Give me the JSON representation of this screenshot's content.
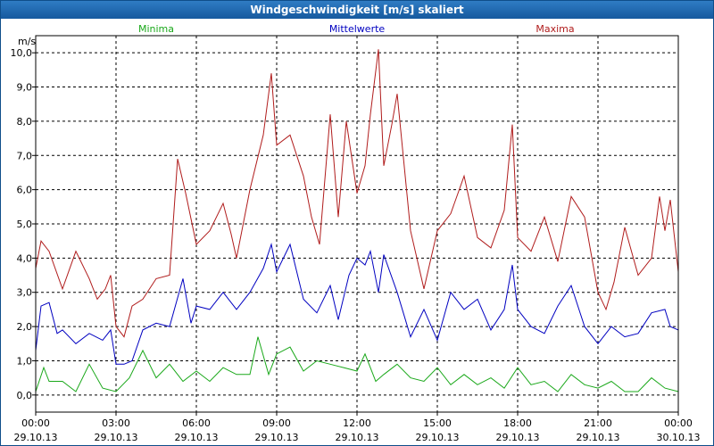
{
  "window": {
    "title": "Windgeschwindigkeit [m/s] skaliert"
  },
  "chart_data": {
    "type": "line",
    "title": "Windgeschwindigkeit [m/s] skaliert",
    "ylabel": "m/s",
    "ylim": [
      -0.5,
      10.5
    ],
    "xlim": [
      0,
      24
    ],
    "yticks": [
      "0,0",
      "1,0",
      "2,0",
      "3,0",
      "4,0",
      "5,0",
      "6,0",
      "7,0",
      "8,0",
      "9,0",
      "10,0"
    ],
    "ytick_values": [
      0,
      1,
      2,
      3,
      4,
      5,
      6,
      7,
      8,
      9,
      10
    ],
    "xticks": [
      {
        "value": 0,
        "time": "00:00",
        "date": "29.10.13"
      },
      {
        "value": 3,
        "time": "03:00",
        "date": "29.10.13"
      },
      {
        "value": 6,
        "time": "06:00",
        "date": "29.10.13"
      },
      {
        "value": 9,
        "time": "09:00",
        "date": "29.10.13"
      },
      {
        "value": 12,
        "time": "12:00",
        "date": "29.10.13"
      },
      {
        "value": 15,
        "time": "15:00",
        "date": "29.10.13"
      },
      {
        "value": 18,
        "time": "18:00",
        "date": "29.10.13"
      },
      {
        "value": 21,
        "time": "21:00",
        "date": "29.10.13"
      },
      {
        "value": 24,
        "time": "00:00",
        "date": "30.10.13"
      }
    ],
    "grid": true,
    "series": [
      {
        "name": "Minima",
        "color": "#1aa81a",
        "points": [
          [
            0.0,
            0.1
          ],
          [
            0.3,
            0.8
          ],
          [
            0.5,
            0.4
          ],
          [
            1.0,
            0.4
          ],
          [
            1.5,
            0.1
          ],
          [
            2.0,
            0.9
          ],
          [
            2.5,
            0.2
          ],
          [
            3.0,
            0.1
          ],
          [
            3.5,
            0.5
          ],
          [
            4.0,
            1.3
          ],
          [
            4.5,
            0.5
          ],
          [
            5.0,
            0.9
          ],
          [
            5.5,
            0.4
          ],
          [
            6.0,
            0.7
          ],
          [
            6.5,
            0.4
          ],
          [
            7.0,
            0.8
          ],
          [
            7.5,
            0.6
          ],
          [
            8.0,
            0.6
          ],
          [
            8.3,
            1.7
          ],
          [
            8.7,
            0.6
          ],
          [
            9.0,
            1.2
          ],
          [
            9.5,
            1.4
          ],
          [
            10.0,
            0.7
          ],
          [
            10.5,
            1.0
          ],
          [
            11.0,
            0.9
          ],
          [
            11.5,
            0.8
          ],
          [
            12.0,
            0.7
          ],
          [
            12.3,
            1.2
          ],
          [
            12.7,
            0.4
          ],
          [
            13.0,
            0.6
          ],
          [
            13.5,
            0.9
          ],
          [
            14.0,
            0.5
          ],
          [
            14.5,
            0.4
          ],
          [
            15.0,
            0.8
          ],
          [
            15.5,
            0.3
          ],
          [
            16.0,
            0.6
          ],
          [
            16.5,
            0.3
          ],
          [
            17.0,
            0.5
          ],
          [
            17.5,
            0.2
          ],
          [
            18.0,
            0.8
          ],
          [
            18.5,
            0.3
          ],
          [
            19.0,
            0.4
          ],
          [
            19.5,
            0.1
          ],
          [
            20.0,
            0.6
          ],
          [
            20.5,
            0.3
          ],
          [
            21.0,
            0.2
          ],
          [
            21.5,
            0.4
          ],
          [
            22.0,
            0.1
          ],
          [
            22.5,
            0.1
          ],
          [
            23.0,
            0.5
          ],
          [
            23.5,
            0.2
          ],
          [
            24.0,
            0.1
          ]
        ]
      },
      {
        "name": "Mittelwerte",
        "color": "#0000c0",
        "points": [
          [
            0.0,
            1.3
          ],
          [
            0.2,
            2.6
          ],
          [
            0.5,
            2.7
          ],
          [
            0.8,
            1.8
          ],
          [
            1.0,
            1.9
          ],
          [
            1.5,
            1.5
          ],
          [
            2.0,
            1.8
          ],
          [
            2.5,
            1.6
          ],
          [
            2.8,
            1.9
          ],
          [
            3.0,
            0.9
          ],
          [
            3.3,
            0.9
          ],
          [
            3.6,
            1.0
          ],
          [
            4.0,
            1.9
          ],
          [
            4.5,
            2.1
          ],
          [
            5.0,
            2.0
          ],
          [
            5.5,
            3.4
          ],
          [
            5.8,
            2.1
          ],
          [
            6.0,
            2.6
          ],
          [
            6.5,
            2.5
          ],
          [
            7.0,
            3.0
          ],
          [
            7.5,
            2.5
          ],
          [
            8.0,
            3.0
          ],
          [
            8.5,
            3.7
          ],
          [
            8.8,
            4.4
          ],
          [
            9.0,
            3.6
          ],
          [
            9.5,
            4.4
          ],
          [
            10.0,
            2.8
          ],
          [
            10.5,
            2.4
          ],
          [
            11.0,
            3.2
          ],
          [
            11.3,
            2.2
          ],
          [
            11.7,
            3.5
          ],
          [
            12.0,
            4.0
          ],
          [
            12.3,
            3.8
          ],
          [
            12.5,
            4.2
          ],
          [
            12.8,
            3.0
          ],
          [
            13.0,
            4.1
          ],
          [
            13.5,
            3.0
          ],
          [
            14.0,
            1.7
          ],
          [
            14.5,
            2.5
          ],
          [
            15.0,
            1.6
          ],
          [
            15.5,
            3.0
          ],
          [
            16.0,
            2.5
          ],
          [
            16.5,
            2.8
          ],
          [
            17.0,
            1.9
          ],
          [
            17.5,
            2.5
          ],
          [
            17.8,
            3.8
          ],
          [
            18.0,
            2.5
          ],
          [
            18.5,
            2.0
          ],
          [
            19.0,
            1.8
          ],
          [
            19.5,
            2.6
          ],
          [
            20.0,
            3.2
          ],
          [
            20.5,
            2.0
          ],
          [
            21.0,
            1.5
          ],
          [
            21.5,
            2.0
          ],
          [
            22.0,
            1.7
          ],
          [
            22.5,
            1.8
          ],
          [
            23.0,
            2.4
          ],
          [
            23.5,
            2.5
          ],
          [
            23.7,
            2.0
          ],
          [
            24.0,
            1.9
          ]
        ]
      },
      {
        "name": "Maxima",
        "color": "#b01c1c",
        "points": [
          [
            0.0,
            3.7
          ],
          [
            0.2,
            4.5
          ],
          [
            0.5,
            4.2
          ],
          [
            1.0,
            3.1
          ],
          [
            1.5,
            4.2
          ],
          [
            2.0,
            3.4
          ],
          [
            2.3,
            2.8
          ],
          [
            2.6,
            3.1
          ],
          [
            2.8,
            3.5
          ],
          [
            3.0,
            2.0
          ],
          [
            3.3,
            1.7
          ],
          [
            3.6,
            2.6
          ],
          [
            4.0,
            2.8
          ],
          [
            4.5,
            3.4
          ],
          [
            5.0,
            3.5
          ],
          [
            5.3,
            6.9
          ],
          [
            5.6,
            5.9
          ],
          [
            6.0,
            4.4
          ],
          [
            6.5,
            4.8
          ],
          [
            7.0,
            5.6
          ],
          [
            7.3,
            4.7
          ],
          [
            7.5,
            4.0
          ],
          [
            8.0,
            6.0
          ],
          [
            8.5,
            7.6
          ],
          [
            8.8,
            9.4
          ],
          [
            9.0,
            7.3
          ],
          [
            9.5,
            7.6
          ],
          [
            10.0,
            6.4
          ],
          [
            10.3,
            5.2
          ],
          [
            10.6,
            4.4
          ],
          [
            11.0,
            8.2
          ],
          [
            11.3,
            5.2
          ],
          [
            11.6,
            8.0
          ],
          [
            12.0,
            5.9
          ],
          [
            12.3,
            6.7
          ],
          [
            12.5,
            8.2
          ],
          [
            12.8,
            10.1
          ],
          [
            13.0,
            6.7
          ],
          [
            13.3,
            7.9
          ],
          [
            13.5,
            8.8
          ],
          [
            14.0,
            4.8
          ],
          [
            14.5,
            3.1
          ],
          [
            15.0,
            4.8
          ],
          [
            15.5,
            5.3
          ],
          [
            16.0,
            6.4
          ],
          [
            16.5,
            4.6
          ],
          [
            17.0,
            4.3
          ],
          [
            17.5,
            5.4
          ],
          [
            17.8,
            7.9
          ],
          [
            18.0,
            4.6
          ],
          [
            18.5,
            4.2
          ],
          [
            19.0,
            5.2
          ],
          [
            19.5,
            3.9
          ],
          [
            20.0,
            5.8
          ],
          [
            20.5,
            5.2
          ],
          [
            21.0,
            3.0
          ],
          [
            21.3,
            2.5
          ],
          [
            21.6,
            3.3
          ],
          [
            22.0,
            4.9
          ],
          [
            22.5,
            3.5
          ],
          [
            23.0,
            4.0
          ],
          [
            23.3,
            5.8
          ],
          [
            23.5,
            4.8
          ],
          [
            23.7,
            5.7
          ],
          [
            24.0,
            3.6
          ]
        ]
      }
    ]
  }
}
